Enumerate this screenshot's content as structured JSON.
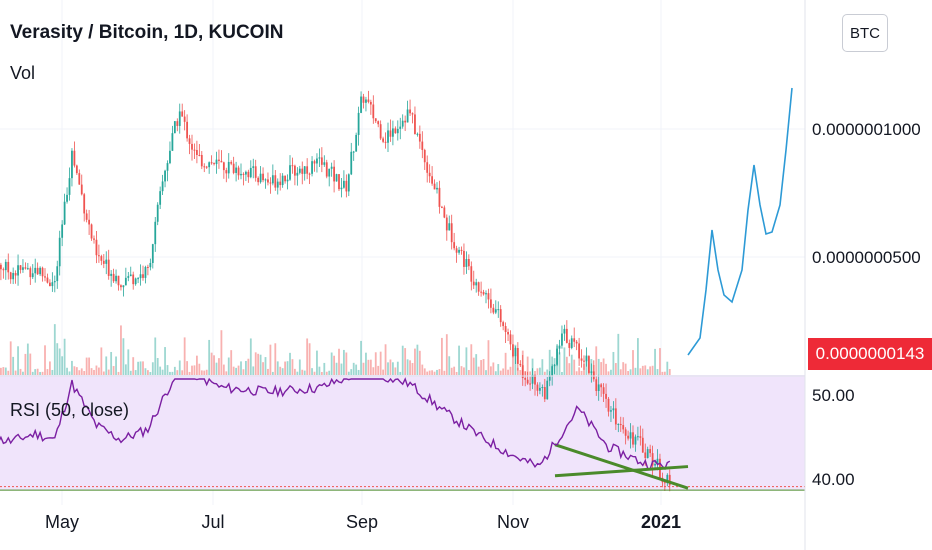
{
  "header": {
    "title": "Verasity / Bitcoin, 1D, KUCOIN",
    "vol_label": "Vol",
    "currency_button": "BTC"
  },
  "rsi_label": "RSI (50, close)",
  "price_axis": {
    "ticks": [
      "0.0000001000",
      "0.0000000500"
    ],
    "current_price": "0.0000000143",
    "current_price_color": "#ee2a37"
  },
  "rsi_axis": {
    "ticks": [
      "50.00",
      "40.00"
    ]
  },
  "time_axis": {
    "labels": [
      "May",
      "Jul",
      "Sep",
      "Nov",
      "2021"
    ]
  },
  "colors": {
    "up": "#26a69a",
    "down": "#ef5350",
    "rsi_line": "#7b1fa2",
    "rsi_band": "#f0e4fb",
    "projection": "#2d9ad6",
    "trendline": "#4a8a2a"
  },
  "chart_data": [
    {
      "type": "line",
      "title": "Verasity / Bitcoin, 1D, KUCOIN",
      "xlabel": "",
      "ylabel": "",
      "y_scale": "log",
      "ylim": [
        1.38e-08,
        1.45e-07
      ],
      "x": [
        "2020-04-01",
        "2020-04-10",
        "2020-04-20",
        "2020-04-28",
        "2020-05-05",
        "2020-05-15",
        "2020-05-25",
        "2020-06-05",
        "2020-06-12",
        "2020-06-18",
        "2020-06-25",
        "2020-07-05",
        "2020-07-15",
        "2020-07-25",
        "2020-08-05",
        "2020-08-15",
        "2020-08-25",
        "2020-09-01",
        "2020-09-10",
        "2020-09-20",
        "2020-09-28",
        "2020-10-05",
        "2020-10-15",
        "2020-10-25",
        "2020-11-05",
        "2020-11-15",
        "2020-11-22",
        "2020-12-01",
        "2020-12-10",
        "2020-12-20",
        "2020-12-28",
        "2021-01-05"
      ],
      "series": [
        {
          "values": [
            5e-08,
            4.6e-08,
            4.7e-08,
            4.3e-08,
            8.8e-08,
            5e-08,
            4.4e-08,
            4.6e-08,
            8e-08,
            1.1e-07,
            8.5e-08,
            8.2e-08,
            8e-08,
            7.5e-08,
            8e-08,
            8.3e-08,
            7.2e-08,
            1.2e-07,
            9.5e-08,
            1.1e-07,
            8e-08,
            6e-08,
            4.6e-08,
            3.8e-08,
            2.7e-08,
            2.4e-08,
            3.3e-08,
            2.9e-08,
            2.2e-08,
            1.9e-08,
            1.7e-08,
            1.43e-08
          ]
        }
      ]
    },
    {
      "type": "line",
      "title": "RSI (50, close)",
      "xlabel": "",
      "ylabel": "",
      "ylim": [
        39,
        52
      ],
      "x": [
        "2020-04-01",
        "2020-04-10",
        "2020-04-20",
        "2020-04-28",
        "2020-05-05",
        "2020-05-15",
        "2020-05-25",
        "2020-06-05",
        "2020-06-18",
        "2020-07-05",
        "2020-07-25",
        "2020-08-15",
        "2020-09-01",
        "2020-09-20",
        "2020-10-05",
        "2020-10-20",
        "2020-11-01",
        "2020-11-12",
        "2020-11-20",
        "2020-11-28",
        "2020-12-10",
        "2020-12-25",
        "2021-01-05"
      ],
      "series": [
        {
          "values": [
            45.0,
            44.6,
            45.5,
            44.8,
            51.5,
            46.5,
            44.8,
            46.0,
            53.5,
            51.0,
            50.5,
            51.0,
            53.0,
            51.5,
            48.0,
            45.0,
            43.0,
            41.5,
            45.0,
            48.5,
            44.0,
            42.0,
            41.7
          ]
        }
      ]
    }
  ]
}
